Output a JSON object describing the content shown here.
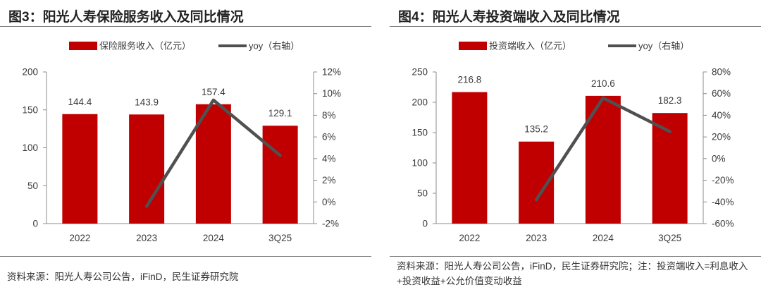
{
  "colors": {
    "bar": "#c00000",
    "line": "#505050",
    "axis": "#8c8c8c",
    "text": "#3a3a3a"
  },
  "charts": [
    {
      "title": "图3：阳光人寿保险服务收入及同比情况",
      "source": "资料来源：阳光人寿公司公告，iFinD，民生证券研究院",
      "chart_data": {
        "type": "bar",
        "categories": [
          "2022",
          "2023",
          "2024",
          "3Q25"
        ],
        "series": [
          {
            "name": "保险服务收入（亿元）",
            "type": "bar",
            "axis": "left",
            "values": [
              144.4,
              143.9,
              157.4,
              129.1
            ],
            "labels": [
              "144.4",
              "143.9",
              "157.4",
              "129.1"
            ]
          },
          {
            "name": "yoy（右轴）",
            "type": "line",
            "axis": "right",
            "values": [
              null,
              -0.4,
              9.4,
              4.3
            ]
          }
        ],
        "y_left": {
          "min": 0,
          "max": 200,
          "ticks": [
            "0",
            "50",
            "100",
            "150",
            "200"
          ]
        },
        "y_right": {
          "min": -2,
          "max": 12,
          "ticks": [
            "-2%",
            "0%",
            "2%",
            "4%",
            "6%",
            "8%",
            "10%",
            "12%"
          ]
        },
        "legend": [
          "保险服务收入（亿元）",
          "yoy（右轴）"
        ],
        "legend_position": "top-center"
      }
    },
    {
      "title": "图4：阳光人寿投资端收入及同比情况",
      "source": "资料来源：阳光人寿公司公告，iFinD，民生证券研究院；注：投资端收入=利息收入+投资收益+公允价值变动收益",
      "chart_data": {
        "type": "bar",
        "categories": [
          "2022",
          "2023",
          "2024",
          "3Q25"
        ],
        "series": [
          {
            "name": "投资端收入（亿元）",
            "type": "bar",
            "axis": "left",
            "values": [
              216.8,
              135.2,
              210.6,
              182.3
            ],
            "labels": [
              "216.8",
              "135.2",
              "210.6",
              "182.3"
            ]
          },
          {
            "name": "yoy（右轴）",
            "type": "line",
            "axis": "right",
            "values": [
              null,
              -38,
              56,
              25
            ]
          }
        ],
        "y_left": {
          "min": 0,
          "max": 250,
          "ticks": [
            "0",
            "50",
            "100",
            "150",
            "200",
            "250"
          ]
        },
        "y_right": {
          "min": -60,
          "max": 80,
          "ticks": [
            "-60%",
            "-40%",
            "-20%",
            "0%",
            "20%",
            "40%",
            "60%",
            "80%"
          ]
        },
        "legend": [
          "投资端收入（亿元）",
          "yoy（右轴）"
        ],
        "legend_position": "top-center"
      }
    }
  ]
}
